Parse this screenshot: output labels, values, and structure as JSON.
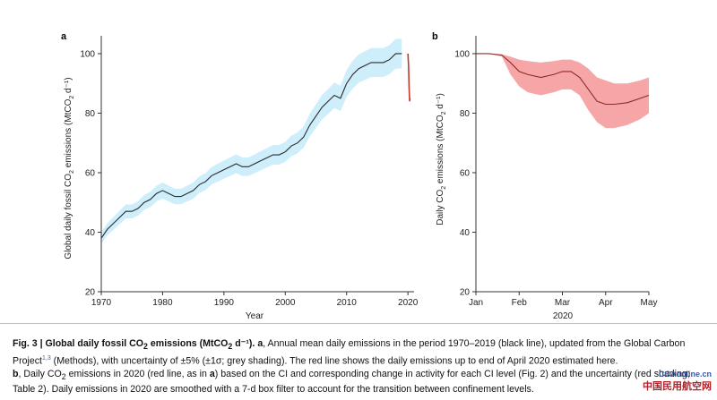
{
  "colors": {
    "line_black": "#2b2b2b",
    "band_blue": "#cdeefa",
    "line_red": "#c0392b",
    "band_red": "#f6a6a6",
    "axis": "#333333"
  },
  "chart_data": [
    {
      "panel_letter": "a",
      "type": "line",
      "xlabel": "Year",
      "ylabel": "Global daily fossil CO2 emissions (MtCO2 d⁻¹)",
      "xlim": [
        1970,
        2021
      ],
      "ylim": [
        20,
        106
      ],
      "x_ticks": [
        1970,
        1980,
        1990,
        2000,
        2010,
        2020
      ],
      "y_ticks": [
        20,
        40,
        60,
        80,
        100
      ],
      "band": "±5% uncertainty",
      "series": [
        {
          "color": "black",
          "x": [
            1970,
            1971,
            1972,
            1973,
            1974,
            1975,
            1976,
            1977,
            1978,
            1979,
            1980,
            1981,
            1982,
            1983,
            1984,
            1985,
            1986,
            1987,
            1988,
            1989,
            1990,
            1991,
            1992,
            1993,
            1994,
            1995,
            1996,
            1997,
            1998,
            1999,
            2000,
            2001,
            2002,
            2003,
            2004,
            2005,
            2006,
            2007,
            2008,
            2009,
            2010,
            2011,
            2012,
            2013,
            2014,
            2015,
            2016,
            2017,
            2018,
            2019
          ],
          "y": [
            38,
            41,
            43,
            45,
            47,
            47,
            48,
            50,
            51,
            53,
            54,
            53,
            52,
            52,
            53,
            54,
            56,
            57,
            59,
            60,
            61,
            62,
            63,
            62,
            62,
            63,
            64,
            65,
            66,
            66,
            67,
            69,
            70,
            72,
            76,
            79,
            82,
            84,
            86,
            85,
            90,
            93,
            95,
            96,
            97,
            97,
            97,
            98,
            100,
            100
          ]
        },
        {
          "color": "red",
          "x": [
            2020.0,
            2020.1,
            2020.2,
            2020.28,
            2020.33
          ],
          "y": [
            100,
            96,
            88,
            84,
            85
          ]
        }
      ]
    },
    {
      "panel_letter": "b",
      "type": "line",
      "xlabel": "2020",
      "ylabel": "Daily CO2 emissions (MtCO2 d⁻¹)",
      "xlim": [
        0,
        4
      ],
      "ylim": [
        20,
        106
      ],
      "x_tick_labels": [
        "Jan",
        "Feb",
        "Mar",
        "Apr",
        "May"
      ],
      "y_ticks": [
        20,
        40,
        60,
        80,
        100
      ],
      "series": [
        {
          "color": "red",
          "x": [
            0,
            0.3,
            0.6,
            0.8,
            1.0,
            1.2,
            1.5,
            1.8,
            2.0,
            2.2,
            2.4,
            2.6,
            2.8,
            3.0,
            3.2,
            3.5,
            3.8,
            4.0
          ],
          "y": [
            100,
            100,
            99.5,
            97,
            94,
            93,
            92,
            93,
            94,
            94,
            92,
            88,
            84,
            83,
            83,
            83.5,
            85,
            86
          ],
          "upper": [
            100,
            100,
            99.8,
            99,
            98,
            97.5,
            97,
            97.5,
            98,
            98,
            97,
            95,
            92,
            91,
            90,
            90,
            91,
            92
          ],
          "lower": [
            100,
            100,
            99,
            93,
            89,
            87,
            86,
            87,
            88,
            88,
            86,
            81,
            77,
            75,
            75,
            76,
            78,
            80
          ]
        }
      ]
    }
  ],
  "caption": {
    "label": "Fig. 3 | Global daily fossil CO",
    "label_sub": "2",
    "label_rest": " emissions (MtCO",
    "label_sub2": "2",
    "label_end": " d⁻¹).",
    "a_letter": "a",
    "a_text1": ", Annual mean daily emissions in the period 1970–2019 (black line), updated from the Global Carbon Project",
    "a_sup": "1,3",
    "a_text2": " (Methods), with uncertainty of ±5% (±1σ; grey shading). The red line shows the daily emissions up to end of April 2020 estimated here.",
    "b_letter": "b",
    "b_text1": ", Daily CO",
    "b_sub": "2",
    "b_text2": " emissions in 2020 (red line, as in ",
    "b_a": "a",
    "b_text3": ") based on the CI and corresponding change in activity for each CI level (Fig. 2) and the uncertainty (red shading; Table 2). Daily emissions in 2020 are smoothed with a 7-d box filter to account for the transition between confinement levels."
  },
  "watermark": {
    "top": "CCAonline.cn",
    "bottom": "中国民用航空网"
  }
}
